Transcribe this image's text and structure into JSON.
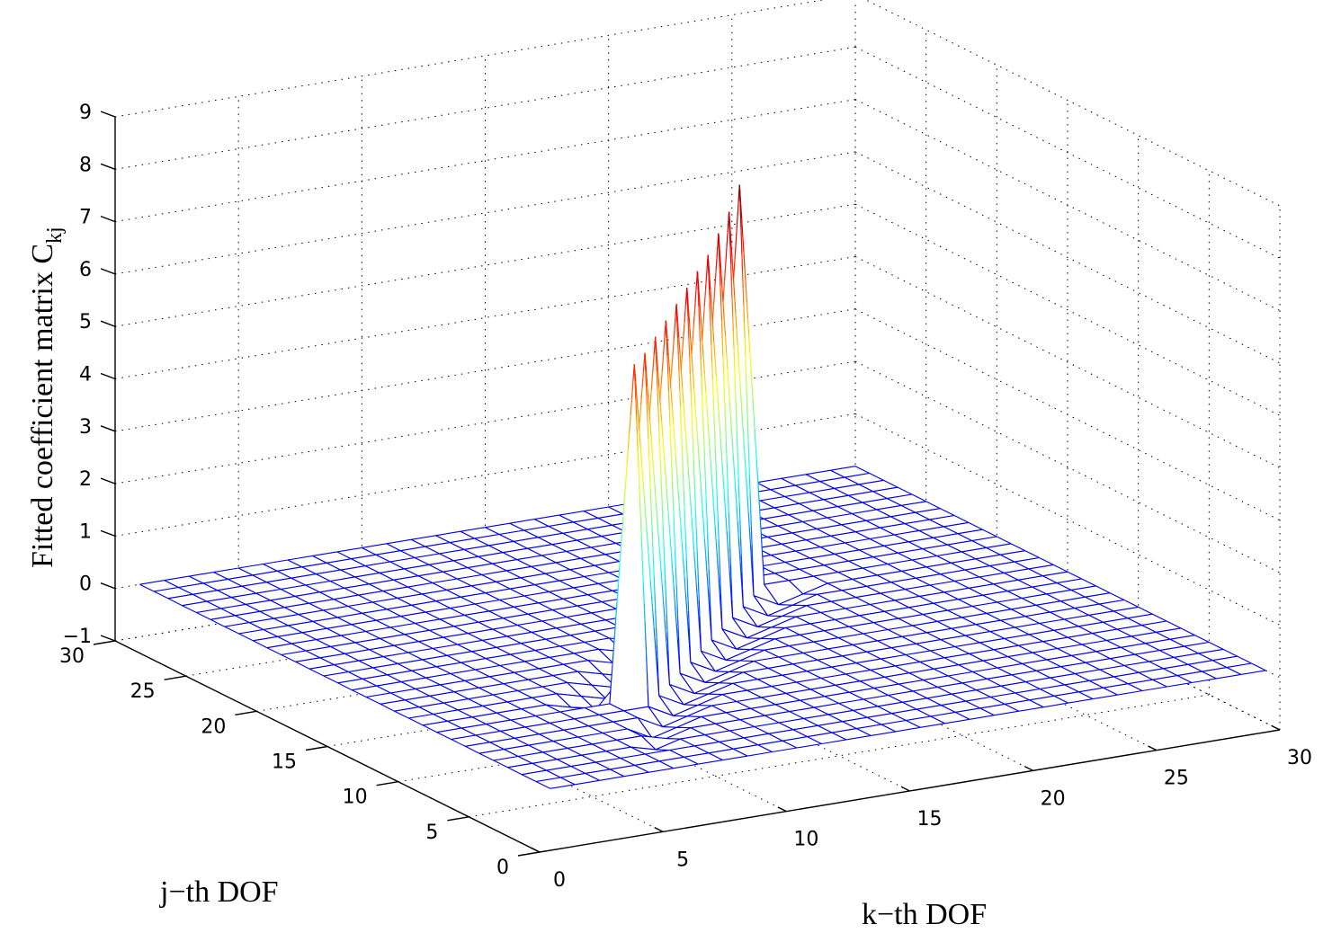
{
  "chart_data": {
    "type": "surface",
    "title": "",
    "xlabel": "k−th DOF",
    "ylabel": "j−th DOF",
    "zlabel": "Fitted coefficient matrix C",
    "zlabel_subscript": "kj",
    "xlim": [
      0,
      30
    ],
    "ylim": [
      0,
      30
    ],
    "zlim": [
      -1,
      9
    ],
    "xticks": [
      "0",
      "5",
      "10",
      "15",
      "20",
      "25",
      "30"
    ],
    "yticks": [
      "0",
      "5",
      "10",
      "15",
      "20",
      "25",
      "30"
    ],
    "zticks": [
      "−1",
      "0",
      "1",
      "2",
      "3",
      "4",
      "5",
      "6",
      "7",
      "8",
      "9"
    ],
    "grid": true,
    "colormap": "jet",
    "mesh_range": [
      1,
      30
    ],
    "ridge": {
      "description": "diagonal band of large coefficients",
      "k_range": [
        9,
        19
      ],
      "peak_values": [
        6.4,
        6.4,
        6.5,
        6.6,
        6.7,
        6.8,
        6.9,
        7.0,
        7.2,
        7.4,
        7.7
      ],
      "baseline": 0,
      "min_value": -0.5
    }
  }
}
